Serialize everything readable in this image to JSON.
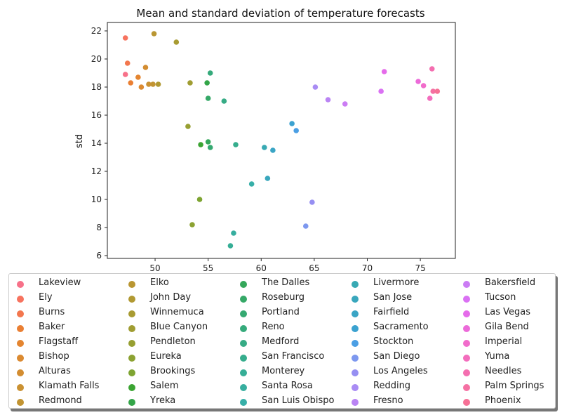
{
  "chart_data": {
    "type": "scatter",
    "title": "Mean and standard deviation of temperature forecasts",
    "xlabel": "",
    "ylabel": "std",
    "xlim": [
      45.5,
      78.3
    ],
    "ylim": [
      5.8,
      22.6
    ],
    "xticks": [
      50,
      55,
      60,
      65,
      70,
      75
    ],
    "yticks": [
      6,
      8,
      10,
      12,
      14,
      16,
      18,
      20,
      22
    ],
    "grid": false,
    "legend_placement": "below-center",
    "series": [
      {
        "name": "Lakeview",
        "color": "#f77189",
        "x": [
          47.2
        ],
        "y": [
          18.9
        ]
      },
      {
        "name": "Ely",
        "color": "#f7735f",
        "x": [
          47.2
        ],
        "y": [
          21.5
        ]
      },
      {
        "name": "Burns",
        "color": "#f3774e",
        "x": [
          47.4
        ],
        "y": [
          19.7
        ]
      },
      {
        "name": "Baker",
        "color": "#ea7f33",
        "x": [
          47.7
        ],
        "y": [
          18.3
        ]
      },
      {
        "name": "Flagstaff",
        "color": "#e48530",
        "x": [
          48.4
        ],
        "y": [
          18.7
        ]
      },
      {
        "name": "Bishop",
        "color": "#db8a31",
        "x": [
          48.7
        ],
        "y": [
          18.0
        ]
      },
      {
        "name": "Alturas",
        "color": "#d38d31",
        "x": [
          49.1
        ],
        "y": [
          19.4
        ]
      },
      {
        "name": "Klamath Falls",
        "color": "#ca9132",
        "x": [
          49.4
        ],
        "y": [
          18.2
        ]
      },
      {
        "name": "Redmond",
        "color": "#c29432",
        "x": [
          49.8
        ],
        "y": [
          18.2
        ]
      },
      {
        "name": "Elko",
        "color": "#b99632",
        "x": [
          49.9
        ],
        "y": [
          21.8
        ]
      },
      {
        "name": "John Day",
        "color": "#b19932",
        "x": [
          50.3
        ],
        "y": [
          18.2
        ]
      },
      {
        "name": "Winnemuca",
        "color": "#a89b32",
        "x": [
          52.0
        ],
        "y": [
          21.2
        ]
      },
      {
        "name": "Blue Canyon",
        "color": "#a09d32",
        "x": [
          53.3
        ],
        "y": [
          18.3
        ]
      },
      {
        "name": "Pendleton",
        "color": "#979f32",
        "x": [
          53.1
        ],
        "y": [
          15.2
        ]
      },
      {
        "name": "Eureka",
        "color": "#8ca232",
        "x": [
          53.5
        ],
        "y": [
          8.2
        ]
      },
      {
        "name": "Brookings",
        "color": "#7ea432",
        "x": [
          54.2
        ],
        "y": [
          10.0
        ]
      },
      {
        "name": "Salem",
        "color": "#3ba432",
        "x": [
          54.3
        ],
        "y": [
          13.9
        ]
      },
      {
        "name": "Yreka",
        "color": "#33a548",
        "x": [
          54.9
        ],
        "y": [
          18.3
        ]
      },
      {
        "name": "The Dalles",
        "color": "#34a75a",
        "x": [
          55.0
        ],
        "y": [
          14.1
        ]
      },
      {
        "name": "Roseburg",
        "color": "#35a867",
        "x": [
          55.0
        ],
        "y": [
          17.2
        ]
      },
      {
        "name": "Portland",
        "color": "#35a971",
        "x": [
          55.2
        ],
        "y": [
          13.7
        ]
      },
      {
        "name": "Reno",
        "color": "#35aa7b",
        "x": [
          55.2
        ],
        "y": [
          19.0
        ]
      },
      {
        "name": "Medford",
        "color": "#36ab85",
        "x": [
          56.5
        ],
        "y": [
          17.0
        ]
      },
      {
        "name": "San Francisco",
        "color": "#36ad8d",
        "x": [
          57.6
        ],
        "y": [
          13.9
        ]
      },
      {
        "name": "Monterey",
        "color": "#36ae96",
        "x": [
          57.1
        ],
        "y": [
          6.7
        ]
      },
      {
        "name": "Santa Rosa",
        "color": "#37ae9f",
        "x": [
          57.4
        ],
        "y": [
          7.6
        ]
      },
      {
        "name": "San Luis Obispo",
        "color": "#37afa8",
        "x": [
          59.1
        ],
        "y": [
          11.1
        ]
      },
      {
        "name": "Livermore",
        "color": "#38a9b3",
        "x": [
          60.3
        ],
        "y": [
          13.7
        ]
      },
      {
        "name": "San Jose",
        "color": "#39a7bd",
        "x": [
          60.6
        ],
        "y": [
          11.5
        ]
      },
      {
        "name": "Fairfield",
        "color": "#3aa5c5",
        "x": [
          61.1
        ],
        "y": [
          13.5
        ]
      },
      {
        "name": "Sacramento",
        "color": "#3ba2d0",
        "x": [
          62.9
        ],
        "y": [
          15.4
        ]
      },
      {
        "name": "Stockton",
        "color": "#4b9fe4",
        "x": [
          63.3
        ],
        "y": [
          14.9
        ]
      },
      {
        "name": "San Diego",
        "color": "#7d98ef",
        "x": [
          64.2
        ],
        "y": [
          8.1
        ]
      },
      {
        "name": "Los Angeles",
        "color": "#968ff2",
        "x": [
          64.8
        ],
        "y": [
          9.8
        ]
      },
      {
        "name": "Redding",
        "color": "#a98cf4",
        "x": [
          65.1
        ],
        "y": [
          18.0
        ]
      },
      {
        "name": "Fresno",
        "color": "#ba84f4",
        "x": [
          66.3
        ],
        "y": [
          17.1
        ]
      },
      {
        "name": "Bakersfield",
        "color": "#cb7cf4",
        "x": [
          67.9
        ],
        "y": [
          16.8
        ]
      },
      {
        "name": "Tucson",
        "color": "#da71f3",
        "x": [
          71.3
        ],
        "y": [
          17.7
        ]
      },
      {
        "name": "Las Vegas",
        "color": "#e56bea",
        "x": [
          71.6
        ],
        "y": [
          19.1
        ]
      },
      {
        "name": "Gila Bend",
        "color": "#ec6ad9",
        "x": [
          74.8
        ],
        "y": [
          18.4
        ]
      },
      {
        "name": "Imperial",
        "color": "#f16ccb",
        "x": [
          75.3
        ],
        "y": [
          18.1
        ]
      },
      {
        "name": "Yuma",
        "color": "#f36dbd",
        "x": [
          75.9
        ],
        "y": [
          17.2
        ]
      },
      {
        "name": "Needles",
        "color": "#f46eb0",
        "x": [
          76.1
        ],
        "y": [
          19.3
        ]
      },
      {
        "name": "Palm Springs",
        "color": "#f570a3",
        "x": [
          76.2
        ],
        "y": [
          17.7
        ]
      },
      {
        "name": "Phoenix",
        "color": "#f67196",
        "x": [
          76.6
        ],
        "y": [
          17.7
        ]
      }
    ]
  }
}
